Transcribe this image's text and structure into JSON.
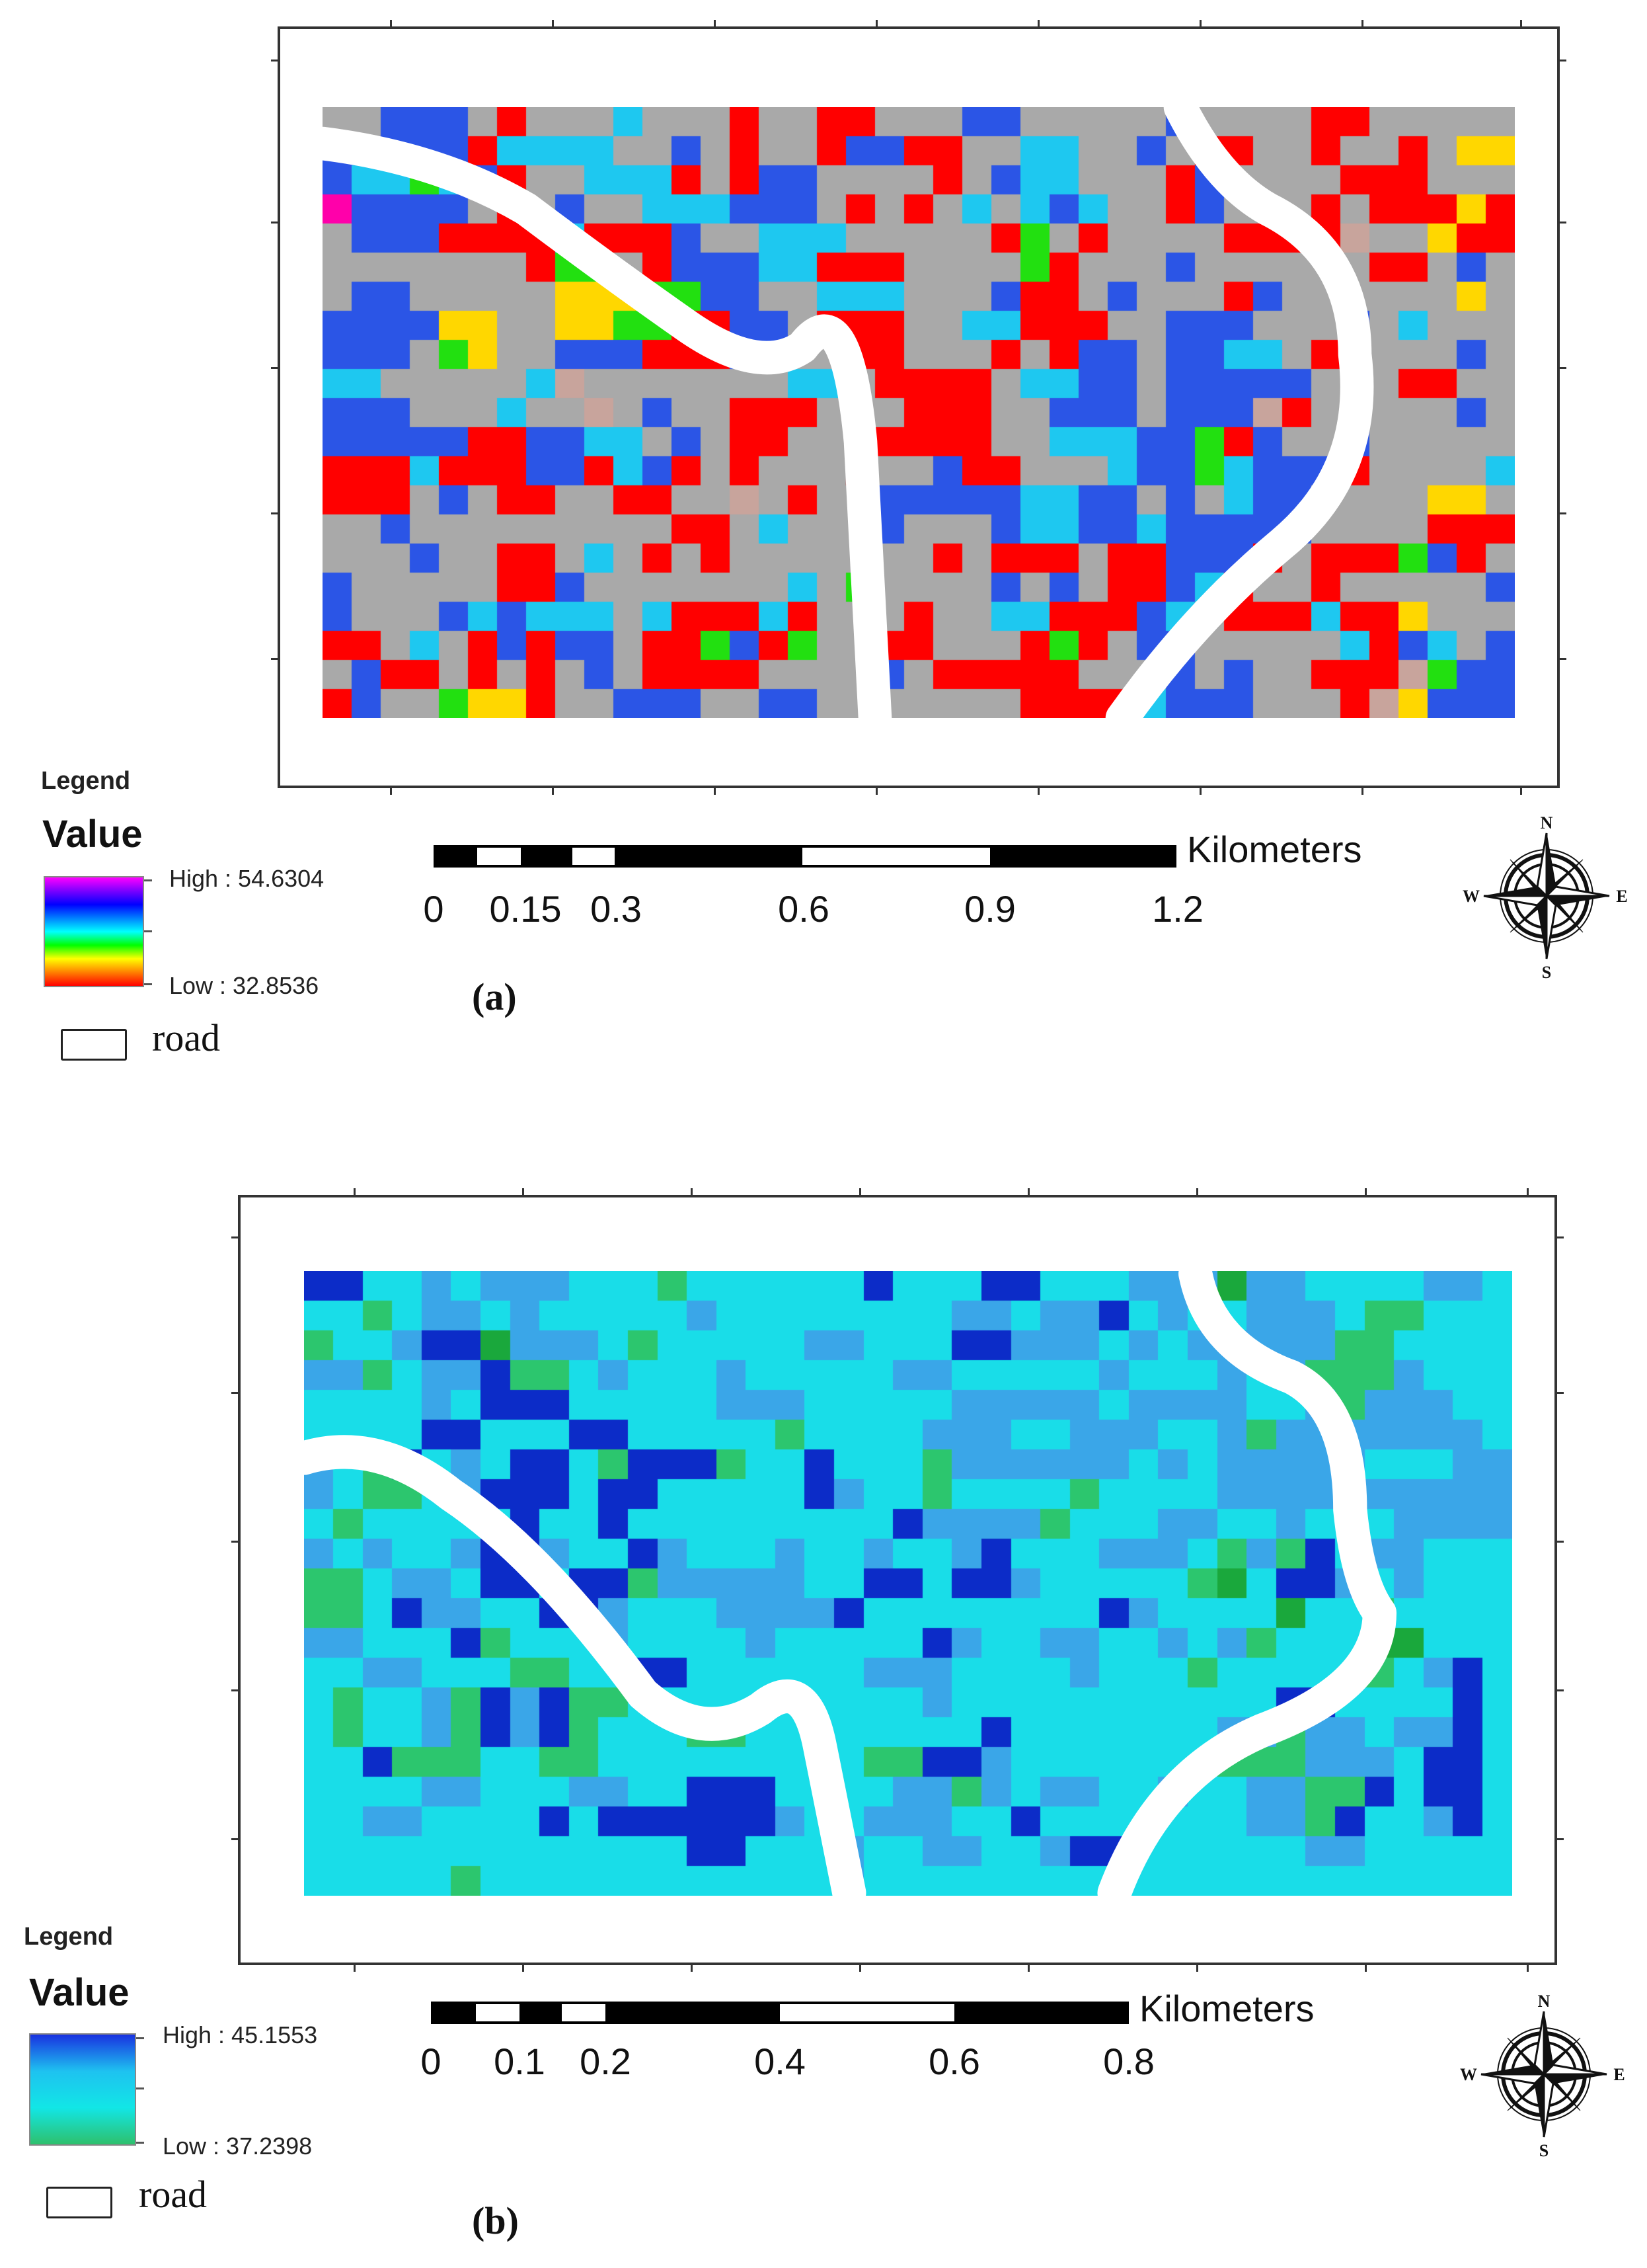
{
  "panels": [
    {
      "id": "a",
      "label": "(a)",
      "legend": {
        "title": "Legend",
        "value_heading": "Value",
        "high_label": "High : 54.6304",
        "low_label": "Low : 32.8536",
        "ramp_colors": [
          "#ff00ff",
          "#7b00ff",
          "#0000ff",
          "#0080ff",
          "#00ffff",
          "#00ff00",
          "#ffff00",
          "#ff8000",
          "#ff0000"
        ],
        "road_label": "road"
      },
      "scale": {
        "unit": "Kilometers",
        "labels": [
          "0",
          "0.15",
          "0.3",
          "0.6",
          "0.9",
          "1.2"
        ],
        "values": [
          0,
          0.15,
          0.3,
          0.6,
          0.9,
          1.2
        ]
      },
      "compass_letters": {
        "n": "N",
        "s": "S",
        "e": "E",
        "w": "W"
      },
      "palette": [
        "#a9a9a9",
        "#2b55e6",
        "#ff0000",
        "#1ec8f0",
        "#22e010",
        "#ffd700",
        "#c8a49c",
        "#ff00aa"
      ],
      "raster": {
        "cols": 41,
        "rows": 21,
        "cells": [
          "00111020003000200220001100000100002200000",
          "11111233330010200211220033001022002002055",
          "13343120033320211000020133000210000222000",
          "71111020100333111020203031300210002022252",
          "01112222322210033300000240200002222600522",
          "00000002440211133222000042000100000022010",
          "01100000555441100333000122010002100000050",
          "11115500554422110222003322200111000103000",
          "11104500111222110022000202110113302000010",
          "33000003600000003302222033110111110002200",
          "11100030060100222000222001110111620100010",
          "11111221133010220002222003331142100100000",
          "22232221123120200020012200031143111200003",
          "22201022002200602001111133110103110000550",
          "00100000000022030001000133113111110000222",
          "00010022030202000000020222022111202224120",
          "10000022100000003040000101022132002000001",
          "10001313330322232000200332221302223225000",
          "22030212110224124002200024201100000321301",
          "01220202010222200001022222000101002226411",
          "21004552001110011000000022223111000265111"
        ]
      },
      "road_paths": [
        "M0,1.25 Q4,1.75 7,3.5 Q10,5.75 12.5,7.5 Q15,9.25 16.5,8.25 Q18,6.25 18.5,11.5 L19,21",
        "M29.5,0 Q30.75,2.5 32.5,3.5 Q35.5,5 35.5,8.5 Q36,12.5 33,15 Q30,17.5 27.5,21"
      ]
    },
    {
      "id": "b",
      "label": "(b)",
      "legend": {
        "title": "Legend",
        "value_heading": "Value",
        "high_label": "High : 45.1553",
        "low_label": "Low : 37.2398",
        "ramp_colors": [
          "#1932e0",
          "#1ec2f0",
          "#12e6e6",
          "#2ec06c"
        ],
        "road_label": "road"
      },
      "scale": {
        "unit": "Kilometers",
        "labels": [
          "0",
          "0.1",
          "0.2",
          "0.4",
          "0.6",
          "0.8"
        ],
        "values": [
          0,
          0.1,
          0.2,
          0.4,
          0.6,
          0.8
        ]
      },
      "compass_letters": {
        "n": "N",
        "s": "S",
        "e": "E",
        "w": "W"
      },
      "palette": [
        "#19dde8",
        "#3aa6e8",
        "#0c2cc8",
        "#2cc66e",
        "#1aa83c"
      ],
      "raster": {
        "cols": 41,
        "rows": 21,
        "cells": [
          "22001011100030000002000220001114110000110",
          "00301101000001000000001101120100111033000",
          "30012241110300000110002211101011111330000",
          "11301123301000100000110000010001013331000",
          "00001022200000111000001111101111001311100",
          "00002200022000003000011100111001311111110",
          "10320102203222300200031111110101111100011",
          "10330122202200000210030000300001111111111",
          "03000002002000000000211113000110010001111",
          "10100122100210001001001200011103132011000",
          "33011022022311111002202210000034022101000",
          "33021100221000111120000000021000040030000",
          "11000230001000010000021001100101300044000",
          "00110003300220000001110000100030000030120",
          "03001321233000000000010000000000022000020",
          "03001321230003300000000200000001131101120",
          "00233300330000000003322100000003331110220",
          "00001100011002220000113101100100113320220",
          "00110000202222221001110020000000113200120",
          "00000000000002200010011001220000001100000",
          "00000300000000000010000000000000000000000"
        ]
      },
      "road_paths": [
        "M0,6.25 Q2.5,5.5 5,7.5 Q8,9.5 11.5,14.25 Q13.5,16 15.5,14.75 Q17,13.5 17.5,16 L18.5,21",
        "M30.25,0 Q30.75,2.5 33.5,3.5 Q35.5,4.5 35.5,8 Q35.75,10.5 36.5,11.5 Q36.5,14 32.5,15.5 Q29,17 27.5,21"
      ]
    }
  ]
}
